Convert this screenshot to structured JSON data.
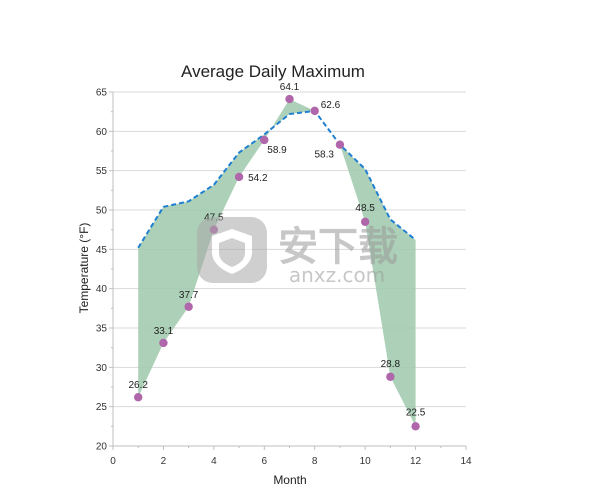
{
  "chart_data": {
    "type": "area",
    "title": "Average Daily Maximum",
    "xlabel": "Month",
    "ylabel": "Temperature (°F)",
    "xlim": [
      0,
      14
    ],
    "ylim": [
      20,
      65
    ],
    "xticks": [
      0,
      2,
      4,
      6,
      8,
      10,
      12,
      14
    ],
    "yticks": [
      20,
      25,
      30,
      35,
      40,
      45,
      50,
      55,
      60,
      65
    ],
    "grid": true,
    "legend": "none",
    "series": [
      {
        "kind": "points",
        "x": [
          1,
          2,
          3,
          4,
          5,
          6,
          7,
          8,
          9,
          10,
          11,
          12
        ],
        "values": [
          26.2,
          33.1,
          37.7,
          47.5,
          54.2,
          58.9,
          64.1,
          62.6,
          58.3,
          48.5,
          28.8,
          22.5
        ],
        "labels": [
          "26.2",
          "33.1",
          "37.7",
          "47.5",
          "54.2",
          "58.9",
          "64.1",
          "62.6",
          "58.3",
          "48.5",
          "28.8",
          "22.5"
        ],
        "color": "#b066aa"
      },
      {
        "kind": "dashed-line",
        "x": [
          1,
          2,
          3,
          4,
          5,
          6,
          7,
          8,
          9,
          10,
          11,
          12
        ],
        "values": [
          45.2,
          50.4,
          51.1,
          53.2,
          57.3,
          59.6,
          62.2,
          62.6,
          58.3,
          55.2,
          48.8,
          46.2
        ],
        "color": "#1f7fd1"
      }
    ],
    "fill_color": "#9ec9ac"
  },
  "watermark": {
    "logo_icon": "shield-logo",
    "cn_text": "安下载",
    "url_text": "anxz.com"
  }
}
